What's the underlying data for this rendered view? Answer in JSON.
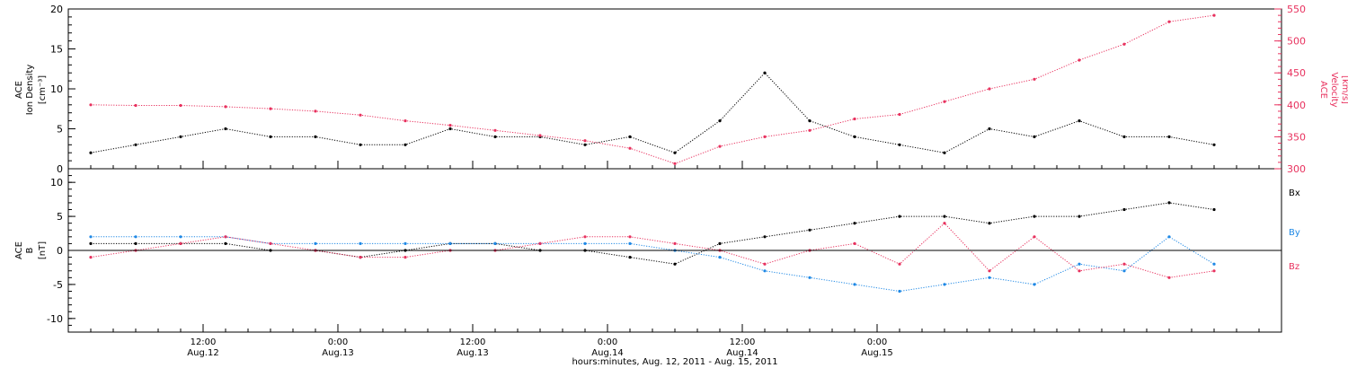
{
  "colors": {
    "black": "#000000",
    "pink": "#e8315e",
    "blue": "#1e88e5"
  },
  "chart_data": [
    {
      "type": "scatter",
      "panel": "top",
      "ylabel_lines": [
        "ACE",
        "Ion Density"
      ],
      "yunit": "[cm⁻³]",
      "ylabel_right_lines": [
        "ACE",
        "Velocity"
      ],
      "yunit_right": "[km/s]",
      "ylim": [
        0,
        20
      ],
      "ylim_right": [
        300,
        550
      ],
      "yticks": [
        "0",
        "5",
        "10",
        "15",
        "20"
      ],
      "yticks_right": [
        "300",
        "350",
        "400",
        "450",
        "500",
        "550"
      ],
      "grid": false,
      "x_hours": [
        2,
        6,
        10,
        14,
        18,
        22,
        26,
        30,
        34,
        38,
        42,
        46,
        50,
        54,
        58,
        62,
        66,
        70,
        74,
        78,
        82,
        86,
        90,
        94,
        98,
        102
      ],
      "series": [
        {
          "color": "black",
          "axis": "left",
          "y": [
            2,
            3,
            4,
            5,
            4,
            4,
            3,
            3,
            5,
            4,
            4,
            3,
            4,
            2,
            6,
            12,
            6,
            4,
            3,
            2,
            5,
            4,
            6,
            4,
            4,
            3
          ]
        },
        {
          "color": "pink",
          "axis": "right",
          "y": [
            400,
            399,
            399,
            397,
            394,
            390,
            384,
            375,
            368,
            360,
            352,
            344,
            332,
            308,
            335,
            350,
            360,
            378,
            385,
            405,
            425,
            440,
            470,
            495,
            530,
            540
          ]
        }
      ]
    },
    {
      "type": "scatter",
      "panel": "bottom",
      "ylabel_lines": [
        "ACE",
        "B"
      ],
      "yunit": "[nT]",
      "ylim": [
        -12,
        12
      ],
      "yticks": [
        "-10",
        "-5",
        "0",
        "5",
        "10"
      ],
      "zero_line": true,
      "grid": false,
      "legend": [
        "Bx",
        "By",
        "Bz"
      ],
      "legend_position": "right",
      "x_hours": [
        2,
        6,
        10,
        14,
        18,
        22,
        26,
        30,
        34,
        38,
        42,
        46,
        50,
        54,
        58,
        62,
        66,
        70,
        74,
        78,
        82,
        86,
        90,
        94,
        98,
        102
      ],
      "series": [
        {
          "name": "Bx",
          "color": "black",
          "y": [
            1,
            1,
            1,
            1,
            0,
            0,
            -1,
            0,
            1,
            1,
            0,
            0,
            -1,
            -2,
            1,
            2,
            3,
            4,
            5,
            5,
            4,
            5,
            5,
            6,
            7,
            6
          ]
        },
        {
          "name": "By",
          "color": "blue",
          "y": [
            2,
            2,
            2,
            2,
            1,
            1,
            1,
            1,
            1,
            1,
            1,
            1,
            1,
            0,
            -1,
            -3,
            -4,
            -5,
            -6,
            -5,
            -4,
            -5,
            -2,
            -3,
            2,
            -2
          ]
        },
        {
          "name": "Bz",
          "color": "pink",
          "y": [
            -1,
            0,
            1,
            2,
            1,
            0,
            -1,
            -1,
            0,
            0,
            1,
            2,
            2,
            1,
            0,
            -2,
            0,
            1,
            -2,
            4,
            -3,
            2,
            -3,
            -2,
            -4,
            -3
          ]
        }
      ]
    }
  ],
  "x_axis": {
    "range_hours": [
      0,
      108
    ],
    "ticks": [
      {
        "hour": 12,
        "time": "12:00",
        "date": "Aug.12"
      },
      {
        "hour": 24,
        "time": "0:00",
        "date": "Aug.13"
      },
      {
        "hour": 36,
        "time": "12:00",
        "date": "Aug.13"
      },
      {
        "hour": 48,
        "time": "0:00",
        "date": "Aug.14"
      },
      {
        "hour": 60,
        "time": "12:00",
        "date": "Aug.14"
      },
      {
        "hour": 72,
        "time": "0:00",
        "date": "Aug.15"
      }
    ],
    "label": "hours:minutes, Aug. 12, 2011 - Aug. 15, 2011"
  }
}
